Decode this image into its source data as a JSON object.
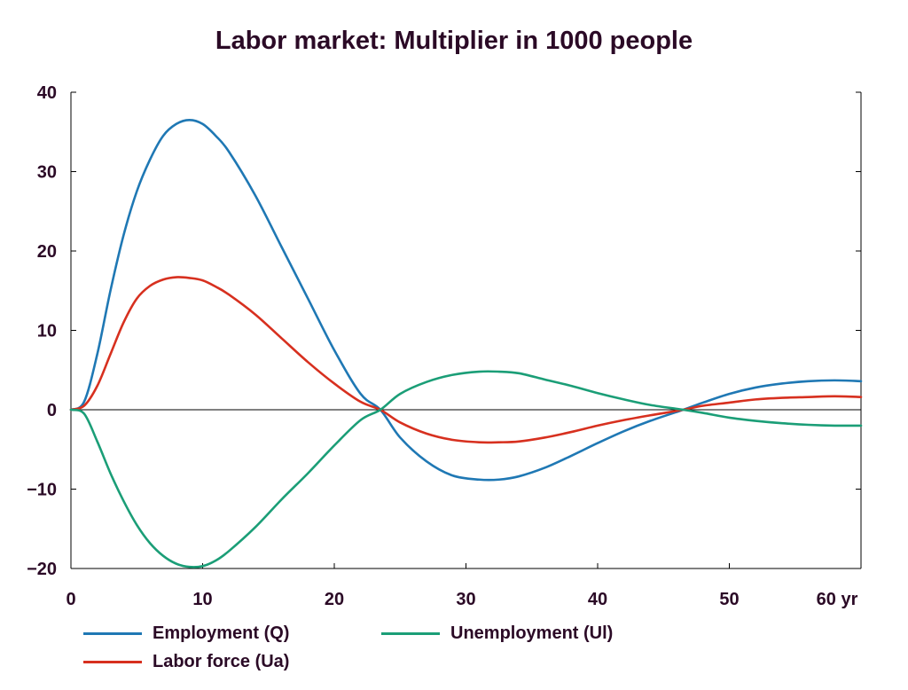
{
  "chart_data": {
    "type": "line",
    "title": "Labor market: Multiplier in 1000 people",
    "xlabel": "",
    "ylabel": "",
    "x_unit_label": "yr",
    "xlim": [
      0,
      60
    ],
    "ylim": [
      -20,
      40
    ],
    "x_ticks": [
      0,
      10,
      20,
      30,
      40,
      50,
      60
    ],
    "y_ticks": [
      -20,
      -10,
      0,
      10,
      20,
      30,
      40
    ],
    "x_tick_labels": [
      "0",
      "10",
      "20",
      "30",
      "40",
      "50",
      "60 yr"
    ],
    "y_tick_labels": [
      "-20",
      "-10",
      "0",
      "10",
      "20",
      "30",
      "40"
    ],
    "grid": false,
    "legend_position": "bottom",
    "x": [
      0,
      1,
      2,
      3,
      4,
      5,
      6,
      7,
      8,
      9,
      10,
      11,
      12,
      14,
      16,
      18,
      20,
      22,
      23.5,
      25,
      27,
      29,
      31,
      32.5,
      34,
      36,
      38,
      40,
      42,
      44,
      46.5,
      48,
      50,
      52,
      54,
      56,
      58,
      60
    ],
    "series": [
      {
        "name": "Employment (Q)",
        "color": "#1f78b4",
        "values": [
          0,
          1,
          7,
          15,
          22,
          27.5,
          31.5,
          34.5,
          36,
          36.5,
          36,
          34.5,
          32.5,
          27,
          20.5,
          14,
          7.5,
          2,
          0,
          -3.5,
          -6.5,
          -8.3,
          -8.8,
          -8.8,
          -8.4,
          -7.3,
          -5.8,
          -4.2,
          -2.7,
          -1.4,
          0,
          0.9,
          2,
          2.8,
          3.3,
          3.6,
          3.7,
          3.6
        ]
      },
      {
        "name": "Labor force (Ua)",
        "color": "#d7301f",
        "values": [
          0,
          0.5,
          3,
          7,
          11,
          14,
          15.6,
          16.4,
          16.7,
          16.6,
          16.3,
          15.5,
          14.5,
          12,
          9,
          6,
          3.3,
          1,
          0,
          -1.6,
          -3,
          -3.8,
          -4.1,
          -4.1,
          -4,
          -3.5,
          -2.8,
          -2,
          -1.3,
          -0.7,
          0,
          0.5,
          0.9,
          1.3,
          1.5,
          1.6,
          1.7,
          1.6
        ]
      },
      {
        "name": "Unemployment (Ul)",
        "color": "#1b9e77",
        "values": [
          0,
          -0.5,
          -4,
          -8,
          -11.5,
          -14.5,
          -16.8,
          -18.4,
          -19.4,
          -19.8,
          -19.7,
          -19,
          -17.8,
          -14.8,
          -11.3,
          -8,
          -4.5,
          -1.3,
          0,
          2,
          3.5,
          4.4,
          4.8,
          4.8,
          4.6,
          3.8,
          3,
          2.1,
          1.3,
          0.6,
          0,
          -0.4,
          -1,
          -1.4,
          -1.7,
          -1.9,
          -2,
          -2
        ]
      }
    ]
  }
}
